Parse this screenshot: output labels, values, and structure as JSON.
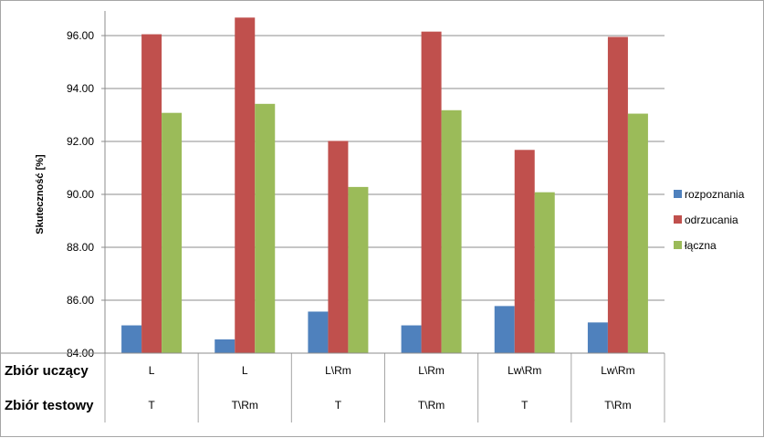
{
  "chart_data": {
    "type": "bar",
    "ylabel": "Skuteczność [%]",
    "ylim": [
      84,
      97
    ],
    "y_ticks": [
      "84.00",
      "86.00",
      "88.00",
      "90.00",
      "92.00",
      "94.00",
      "96.00"
    ],
    "grid": true,
    "legend_position": "right",
    "category_rows": [
      {
        "title": "Zbiór uczący",
        "labels": [
          "L",
          "L",
          "L\\Rm",
          "L\\Rm",
          "Lw\\Rm",
          "Lw\\Rm"
        ]
      },
      {
        "title": "Zbiór testowy",
        "labels": [
          "T",
          "T\\Rm",
          "T",
          "T\\Rm",
          "T",
          "T\\Rm"
        ]
      }
    ],
    "series": [
      {
        "name": "rozpoznania",
        "color": "#4f81bd",
        "values": [
          85.05,
          84.52,
          85.57,
          85.05,
          85.78,
          85.16
        ]
      },
      {
        "name": "odrzucania",
        "color": "#c0504d",
        "values": [
          96.05,
          96.68,
          92.02,
          96.15,
          91.68,
          95.95
        ]
      },
      {
        "name": "łączna",
        "color": "#9bbb59",
        "values": [
          93.08,
          93.42,
          90.28,
          93.18,
          90.08,
          93.05
        ]
      }
    ]
  }
}
